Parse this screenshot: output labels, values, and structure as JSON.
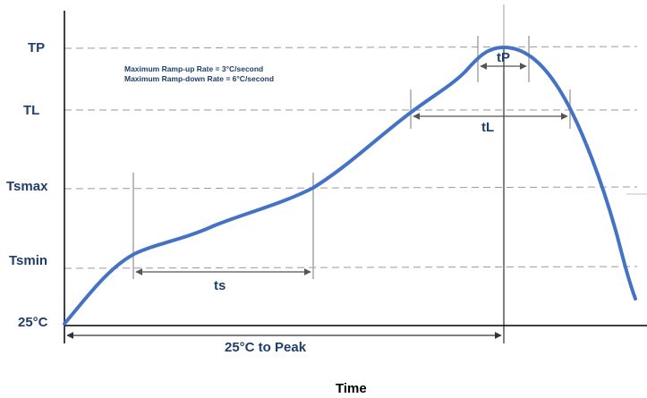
{
  "levels": {
    "tp": "TP",
    "tl": "TL",
    "tsmax": "Tsmax",
    "tsmin": "Tsmin",
    "t25": "25°C"
  },
  "notes": {
    "ramp_up": "Maximum Ramp-up Rate = 3°C/second",
    "ramp_down": "Maximum Ramp-down Rate = 6°C/second"
  },
  "intervals": {
    "tp": "tP",
    "tl": "tL",
    "ts": "ts",
    "to_peak": "25°C to Peak"
  },
  "x_axis_label": "Time",
  "colors": {
    "profile_curve": "#4472c4",
    "label_text": "#1f3e6b",
    "guide_lines": "#999999",
    "axes": "#000000"
  }
}
